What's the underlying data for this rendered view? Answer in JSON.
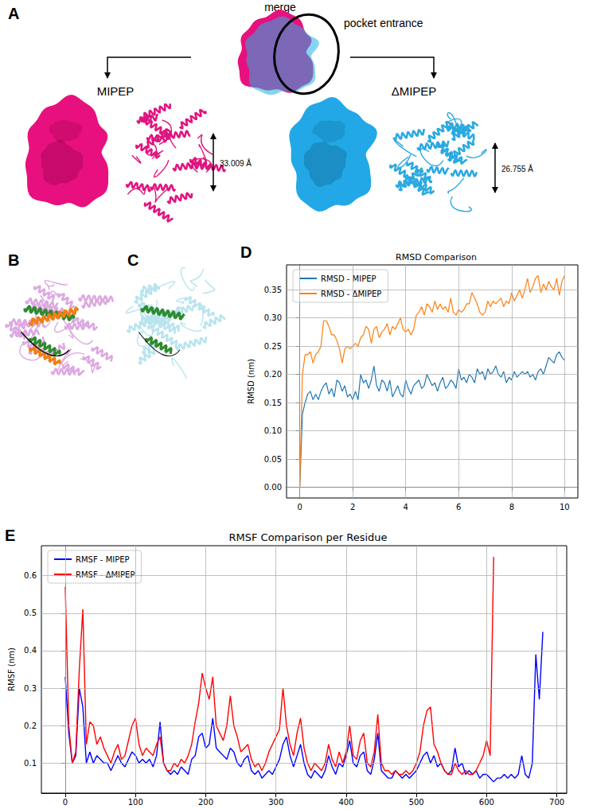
{
  "panel_labels": [
    "A",
    "B",
    "C",
    "D",
    "E"
  ],
  "panel_a": {
    "top_label": "merge",
    "annotation": "pocket entrance",
    "left": {
      "title": "MIPEP",
      "measure": "33.009 Å"
    },
    "right": {
      "title": "ΔMIPEP",
      "measure": "26.755 Å"
    }
  },
  "chart_data": [
    {
      "type": "line",
      "title": "RMSD Comparison",
      "y_label": "RMSD (nm)",
      "x": [
        0,
        0.1,
        0.2,
        0.3,
        0.4,
        0.5,
        0.6,
        0.7,
        0.8,
        0.9,
        1,
        1.1,
        1.2,
        1.3,
        1.4,
        1.5,
        1.6,
        1.7,
        1.8,
        1.9,
        2,
        2.1,
        2.2,
        2.3,
        2.4,
        2.5,
        2.6,
        2.7,
        2.8,
        2.9,
        3,
        3.1,
        3.2,
        3.3,
        3.4,
        3.5,
        3.6,
        3.7,
        3.8,
        3.9,
        4,
        4.1,
        4.2,
        4.3,
        4.4,
        4.5,
        4.6,
        4.7,
        4.8,
        4.9,
        5,
        5.1,
        5.2,
        5.3,
        5.4,
        5.5,
        5.6,
        5.7,
        5.8,
        5.9,
        6,
        6.1,
        6.2,
        6.3,
        6.4,
        6.5,
        6.6,
        6.7,
        6.8,
        6.9,
        7,
        7.1,
        7.2,
        7.3,
        7.4,
        7.5,
        7.6,
        7.7,
        7.8,
        7.9,
        8,
        8.1,
        8.2,
        8.3,
        8.4,
        8.5,
        8.6,
        8.7,
        8.8,
        8.9,
        9,
        9.1,
        9.2,
        9.3,
        9.4,
        9.5,
        9.6,
        9.7,
        9.8,
        9.9,
        10
      ],
      "series": [
        {
          "name": "RMSD - MIPEP",
          "color": "#1f77b4",
          "values": [
            0,
            0.13,
            0.15,
            0.165,
            0.17,
            0.155,
            0.165,
            0.155,
            0.17,
            0.18,
            0.185,
            0.165,
            0.175,
            0.16,
            0.19,
            0.185,
            0.17,
            0.18,
            0.16,
            0.165,
            0.155,
            0.17,
            0.155,
            0.2,
            0.185,
            0.19,
            0.175,
            0.19,
            0.215,
            0.18,
            0.17,
            0.19,
            0.185,
            0.17,
            0.19,
            0.16,
            0.17,
            0.18,
            0.165,
            0.16,
            0.19,
            0.175,
            0.165,
            0.18,
            0.185,
            0.19,
            0.175,
            0.18,
            0.2,
            0.19,
            0.18,
            0.185,
            0.17,
            0.185,
            0.195,
            0.175,
            0.18,
            0.19,
            0.185,
            0.175,
            0.21,
            0.19,
            0.195,
            0.185,
            0.2,
            0.195,
            0.185,
            0.21,
            0.2,
            0.205,
            0.19,
            0.21,
            0.2,
            0.205,
            0.215,
            0.2,
            0.195,
            0.205,
            0.185,
            0.195,
            0.19,
            0.205,
            0.195,
            0.2,
            0.205,
            0.2,
            0.205,
            0.195,
            0.2,
            0.19,
            0.205,
            0.21,
            0.2,
            0.215,
            0.23,
            0.225,
            0.22,
            0.235,
            0.24,
            0.23,
            0.225
          ]
        },
        {
          "name": "RMSD - ΔMIPEP",
          "color": "#ff7f0e",
          "values": [
            0,
            0.2,
            0.235,
            0.235,
            0.24,
            0.22,
            0.235,
            0.24,
            0.25,
            0.295,
            0.295,
            0.285,
            0.27,
            0.27,
            0.26,
            0.245,
            0.22,
            0.245,
            0.25,
            0.245,
            0.25,
            0.255,
            0.25,
            0.265,
            0.27,
            0.285,
            0.28,
            0.255,
            0.28,
            0.285,
            0.265,
            0.275,
            0.28,
            0.29,
            0.27,
            0.285,
            0.28,
            0.29,
            0.3,
            0.28,
            0.275,
            0.28,
            0.27,
            0.28,
            0.305,
            0.31,
            0.32,
            0.305,
            0.325,
            0.32,
            0.31,
            0.33,
            0.315,
            0.325,
            0.315,
            0.32,
            0.31,
            0.335,
            0.31,
            0.305,
            0.315,
            0.31,
            0.315,
            0.325,
            0.325,
            0.345,
            0.335,
            0.325,
            0.31,
            0.305,
            0.31,
            0.33,
            0.32,
            0.33,
            0.325,
            0.33,
            0.335,
            0.32,
            0.33,
            0.325,
            0.345,
            0.33,
            0.34,
            0.35,
            0.335,
            0.35,
            0.37,
            0.345,
            0.355,
            0.37,
            0.375,
            0.345,
            0.36,
            0.35,
            0.365,
            0.355,
            0.35,
            0.37,
            0.34,
            0.365,
            0.375
          ]
        }
      ],
      "xlim": [
        -0.5,
        10.5
      ],
      "xticks": [
        0,
        2,
        4,
        6,
        8,
        10
      ],
      "ylim": [
        -0.019,
        0.394
      ],
      "yticks": [
        {
          "value": 0,
          "label": "0.00"
        },
        {
          "value": 0.05,
          "label": "0.05"
        },
        {
          "value": 0.1,
          "label": "0.10"
        },
        {
          "value": 0.15,
          "label": "0.15"
        },
        {
          "value": 0.2,
          "label": "0.20"
        },
        {
          "value": 0.25,
          "label": "0.25"
        },
        {
          "value": 0.3,
          "label": "0.30"
        },
        {
          "value": 0.35,
          "label": "0.35"
        }
      ],
      "grid": true,
      "legend": "upper left"
    },
    {
      "type": "line",
      "title": "RMSF Comparison per Residue",
      "y_label": "RMSF (nm)",
      "series": [
        {
          "name": "RMSF - MIPEP",
          "color": "#0000ff",
          "x": [
            0,
            5,
            10,
            15,
            20,
            25,
            30,
            35,
            40,
            45,
            50,
            55,
            60,
            65,
            70,
            75,
            80,
            85,
            90,
            95,
            100,
            105,
            110,
            115,
            120,
            125,
            130,
            135,
            140,
            145,
            150,
            155,
            160,
            165,
            170,
            175,
            180,
            185,
            190,
            195,
            200,
            205,
            210,
            215,
            220,
            225,
            230,
            235,
            240,
            245,
            250,
            255,
            260,
            265,
            270,
            275,
            280,
            285,
            290,
            295,
            300,
            305,
            310,
            315,
            320,
            325,
            330,
            335,
            340,
            345,
            350,
            355,
            360,
            365,
            370,
            375,
            380,
            385,
            390,
            395,
            400,
            405,
            410,
            415,
            420,
            425,
            430,
            435,
            440,
            445,
            450,
            455,
            460,
            465,
            470,
            475,
            480,
            485,
            490,
            495,
            500,
            505,
            510,
            515,
            520,
            525,
            530,
            535,
            540,
            545,
            550,
            555,
            560,
            565,
            570,
            575,
            580,
            585,
            590,
            595,
            600,
            605,
            610,
            615,
            620,
            625,
            630,
            635,
            640,
            645,
            650,
            655,
            660,
            665,
            670,
            675,
            680
          ],
          "values": [
            0.33,
            0.18,
            0.1,
            0.12,
            0.3,
            0.25,
            0.1,
            0.13,
            0.1,
            0.12,
            0.11,
            0.1,
            0.1,
            0.08,
            0.1,
            0.12,
            0.1,
            0.09,
            0.11,
            0.13,
            0.12,
            0.1,
            0.11,
            0.1,
            0.11,
            0.09,
            0.12,
            0.21,
            0.1,
            0.08,
            0.07,
            0.08,
            0.07,
            0.09,
            0.08,
            0.07,
            0.11,
            0.12,
            0.17,
            0.18,
            0.14,
            0.15,
            0.22,
            0.14,
            0.13,
            0.12,
            0.11,
            0.14,
            0.13,
            0.1,
            0.09,
            0.11,
            0.12,
            0.08,
            0.07,
            0.08,
            0.06,
            0.07,
            0.08,
            0.07,
            0.09,
            0.11,
            0.15,
            0.17,
            0.12,
            0.09,
            0.12,
            0.15,
            0.1,
            0.07,
            0.06,
            0.08,
            0.07,
            0.06,
            0.08,
            0.12,
            0.09,
            0.07,
            0.1,
            0.09,
            0.12,
            0.16,
            0.1,
            0.09,
            0.12,
            0.13,
            0.08,
            0.07,
            0.11,
            0.18,
            0.08,
            0.07,
            0.06,
            0.06,
            0.08,
            0.07,
            0.06,
            0.07,
            0.06,
            0.07,
            0.08,
            0.1,
            0.12,
            0.13,
            0.1,
            0.12,
            0.09,
            0.1,
            0.08,
            0.07,
            0.08,
            0.14,
            0.09,
            0.1,
            0.07,
            0.08,
            0.07,
            0.08,
            0.06,
            0.07,
            0.07,
            0.06,
            0.05,
            0.06,
            0.06,
            0.07,
            0.06,
            0.07,
            0.06,
            0.07,
            0.12,
            0.07,
            0.06,
            0.1,
            0.39,
            0.27,
            0.45
          ]
        },
        {
          "name": "RMSF - ΔMIPEP",
          "color": "#ff0000",
          "x": [
            0,
            5,
            10,
            15,
            20,
            25,
            30,
            35,
            40,
            45,
            50,
            55,
            60,
            65,
            70,
            75,
            80,
            85,
            90,
            95,
            100,
            105,
            110,
            115,
            120,
            125,
            130,
            135,
            140,
            145,
            150,
            155,
            160,
            165,
            170,
            175,
            180,
            185,
            190,
            195,
            200,
            205,
            210,
            215,
            220,
            225,
            230,
            235,
            240,
            245,
            250,
            255,
            260,
            265,
            270,
            275,
            280,
            285,
            290,
            295,
            300,
            305,
            310,
            315,
            320,
            325,
            330,
            335,
            340,
            345,
            350,
            355,
            360,
            365,
            370,
            375,
            380,
            385,
            390,
            395,
            400,
            405,
            410,
            415,
            420,
            425,
            430,
            435,
            440,
            445,
            450,
            455,
            460,
            465,
            470,
            475,
            480,
            485,
            490,
            495,
            500,
            505,
            510,
            515,
            520,
            525,
            530,
            535,
            540,
            545,
            550,
            555,
            560,
            565,
            570,
            575,
            580,
            585,
            590,
            595,
            600,
            605,
            610
          ],
          "values": [
            0.57,
            0.2,
            0.1,
            0.13,
            0.35,
            0.51,
            0.15,
            0.21,
            0.2,
            0.15,
            0.17,
            0.14,
            0.12,
            0.1,
            0.13,
            0.15,
            0.11,
            0.12,
            0.16,
            0.2,
            0.22,
            0.15,
            0.12,
            0.14,
            0.13,
            0.12,
            0.15,
            0.17,
            0.1,
            0.08,
            0.08,
            0.1,
            0.09,
            0.11,
            0.1,
            0.12,
            0.15,
            0.21,
            0.26,
            0.34,
            0.3,
            0.27,
            0.33,
            0.2,
            0.18,
            0.16,
            0.2,
            0.28,
            0.2,
            0.17,
            0.13,
            0.14,
            0.15,
            0.11,
            0.09,
            0.1,
            0.08,
            0.1,
            0.13,
            0.15,
            0.17,
            0.19,
            0.3,
            0.2,
            0.15,
            0.12,
            0.18,
            0.22,
            0.14,
            0.1,
            0.08,
            0.1,
            0.09,
            0.08,
            0.1,
            0.15,
            0.11,
            0.09,
            0.13,
            0.1,
            0.13,
            0.2,
            0.12,
            0.11,
            0.16,
            0.18,
            0.1,
            0.09,
            0.13,
            0.23,
            0.1,
            0.08,
            0.08,
            0.07,
            0.08,
            0.07,
            0.07,
            0.08,
            0.07,
            0.08,
            0.1,
            0.13,
            0.2,
            0.24,
            0.25,
            0.15,
            0.13,
            0.1,
            0.08,
            0.07,
            0.07,
            0.1,
            0.08,
            0.07,
            0.08,
            0.07,
            0.07,
            0.08,
            0.1,
            0.12,
            0.16,
            0.12,
            0.65
          ]
        }
      ],
      "xlim": [
        -34,
        714
      ],
      "xticks": [
        0,
        100,
        200,
        300,
        400,
        500,
        600,
        700
      ],
      "ylim": [
        0.02,
        0.68
      ],
      "yticks": [
        0.1,
        0.2,
        0.3,
        0.4,
        0.5,
        0.6
      ],
      "grid": true,
      "legend": "upper left"
    }
  ]
}
